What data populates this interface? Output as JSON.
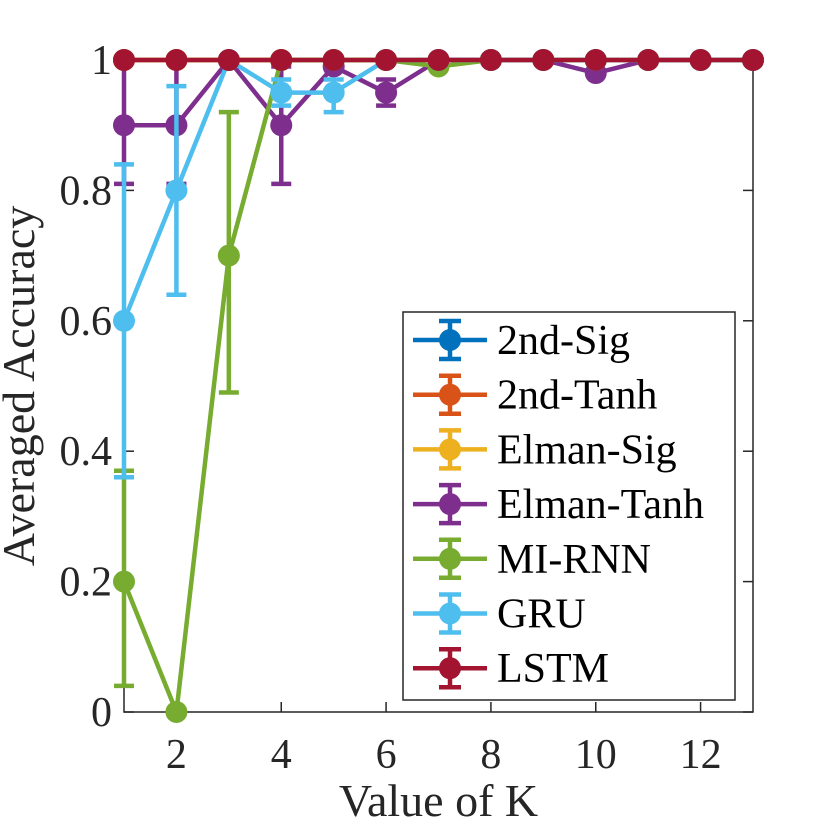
{
  "figure": {
    "background": "#ffffff",
    "axis_color": "#262626",
    "text_color": "#262626"
  },
  "chart_data": {
    "type": "line",
    "title": "",
    "xlabel": "Value of K",
    "ylabel": "Averaged Accuracy",
    "xlim": [
      1,
      13
    ],
    "ylim": [
      0,
      1
    ],
    "xticks": [
      2,
      4,
      6,
      8,
      10,
      12
    ],
    "xtick_labels": [
      "2",
      "4",
      "6",
      "8",
      "10",
      "12"
    ],
    "yticks": [
      0,
      0.2,
      0.4,
      0.6,
      0.8,
      1
    ],
    "ytick_labels": [
      "0",
      "0.2",
      "0.4",
      "0.6",
      "0.8",
      "1"
    ],
    "grid": false,
    "legend_position": "lower-right-inside",
    "marker": "circle",
    "error_bars": true,
    "x": [
      1,
      2,
      3,
      4,
      5,
      6,
      7,
      8,
      9,
      10,
      11,
      12,
      13
    ],
    "series": [
      {
        "name": "2nd-Sig",
        "color": "#0072BD",
        "values": [
          1,
          1,
          1,
          1,
          1,
          1,
          1,
          1,
          1,
          1,
          1,
          1,
          1
        ],
        "err_lo": [
          null,
          null,
          null,
          null,
          null,
          null,
          null,
          null,
          null,
          null,
          null,
          null,
          null
        ],
        "err_hi": [
          null,
          null,
          null,
          null,
          null,
          null,
          null,
          null,
          null,
          null,
          null,
          null,
          null
        ]
      },
      {
        "name": "2nd-Tanh",
        "color": "#D95319",
        "values": [
          1,
          1,
          1,
          1,
          1,
          1,
          1,
          1,
          1,
          1,
          1,
          1,
          1
        ],
        "err_lo": [
          null,
          null,
          null,
          null,
          null,
          null,
          null,
          null,
          null,
          null,
          null,
          null,
          null
        ],
        "err_hi": [
          null,
          null,
          null,
          null,
          null,
          null,
          null,
          null,
          null,
          null,
          null,
          null,
          null
        ]
      },
      {
        "name": "Elman-Sig",
        "color": "#EDB120",
        "values": [
          1,
          1,
          1,
          1,
          1,
          1,
          1,
          1,
          1,
          1,
          1,
          1,
          1
        ],
        "err_lo": [
          null,
          null,
          null,
          null,
          null,
          null,
          null,
          null,
          null,
          null,
          null,
          null,
          null
        ],
        "err_hi": [
          null,
          null,
          null,
          null,
          null,
          null,
          null,
          null,
          null,
          null,
          null,
          null,
          null
        ]
      },
      {
        "name": "Elman-Tanh",
        "color": "#7E2F8E",
        "values": [
          0.9,
          0.9,
          1,
          0.9,
          0.99,
          0.95,
          1,
          1,
          1,
          0.98,
          1,
          1,
          1
        ],
        "err_lo": [
          0.81,
          0.81,
          null,
          0.81,
          null,
          0.93,
          null,
          null,
          null,
          null,
          null,
          null,
          null
        ],
        "err_hi": [
          1.0,
          1.0,
          null,
          0.99,
          null,
          0.97,
          null,
          null,
          null,
          null,
          null,
          null,
          null
        ]
      },
      {
        "name": "MI-RNN",
        "color": "#77AC30",
        "values": [
          0.2,
          0,
          0.7,
          1,
          1,
          1,
          0.99,
          1,
          1,
          1,
          1,
          1,
          1
        ],
        "err_lo": [
          0.04,
          null,
          0.49,
          null,
          null,
          null,
          null,
          null,
          null,
          null,
          null,
          null,
          null
        ],
        "err_hi": [
          0.37,
          null,
          0.92,
          null,
          null,
          null,
          null,
          null,
          null,
          null,
          null,
          null,
          null
        ]
      },
      {
        "name": "GRU",
        "color": "#4DBEEE",
        "values": [
          0.6,
          0.8,
          1,
          0.95,
          0.95,
          1,
          1,
          1,
          1,
          1,
          1,
          1,
          1
        ],
        "err_lo": [
          0.36,
          0.64,
          null,
          0.93,
          0.92,
          null,
          null,
          null,
          null,
          null,
          null,
          null,
          null
        ],
        "err_hi": [
          0.84,
          0.96,
          null,
          0.97,
          0.97,
          null,
          null,
          null,
          null,
          null,
          null,
          null,
          null
        ]
      },
      {
        "name": "LSTM",
        "color": "#A2142F",
        "values": [
          1,
          1,
          1,
          1,
          1,
          1,
          1,
          1,
          1,
          1,
          1,
          1,
          1
        ],
        "err_lo": [
          null,
          null,
          null,
          null,
          null,
          null,
          null,
          null,
          null,
          null,
          null,
          null,
          null
        ],
        "err_hi": [
          null,
          null,
          null,
          null,
          null,
          null,
          null,
          null,
          null,
          null,
          null,
          null,
          null
        ]
      }
    ]
  }
}
